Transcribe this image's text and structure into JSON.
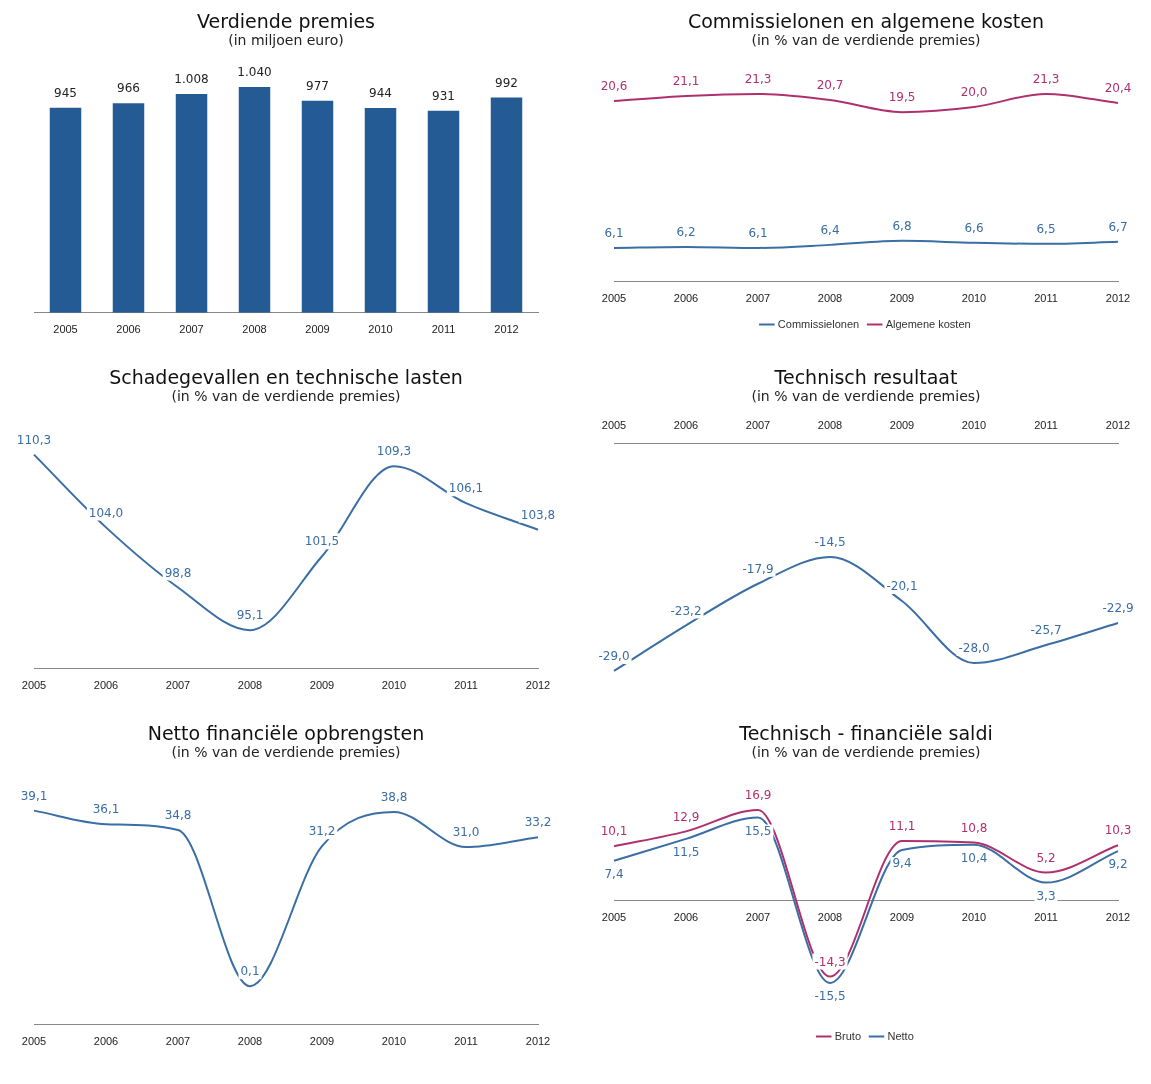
{
  "chart_data": [
    {
      "type": "bar",
      "title": "Verdiende premies",
      "subtitle": "(in miljoen euro)",
      "categories": [
        "2005",
        "2006",
        "2007",
        "2008",
        "2009",
        "2010",
        "2011",
        "2012"
      ],
      "series": [
        {
          "color": "#245b94",
          "values": [
            945,
            966,
            1008,
            1040,
            977,
            944,
            931,
            992
          ],
          "value_labels": [
            "945",
            "966",
            "1.008",
            "1.040",
            "977",
            "944",
            "931",
            "992"
          ]
        }
      ]
    },
    {
      "type": "line",
      "title": "Commissielonen en algemene kosten",
      "subtitle": "(in % van de verdiende premies)",
      "categories": [
        "2005",
        "2006",
        "2007",
        "2008",
        "2009",
        "2010",
        "2011",
        "2012"
      ],
      "legend": "bottom",
      "series": [
        {
          "name": "Commissielonen",
          "color": "#3a6ea5",
          "values": [
            6.1,
            6.2,
            6.1,
            6.4,
            6.8,
            6.6,
            6.5,
            6.7
          ],
          "value_labels": [
            "6,1",
            "6,2",
            "6,1",
            "6,4",
            "6,8",
            "6,6",
            "6,5",
            "6,7"
          ]
        },
        {
          "name": "Algemene kosten",
          "color": "#b0306e",
          "values": [
            20.6,
            21.1,
            21.3,
            20.7,
            19.5,
            20.0,
            21.3,
            20.4
          ],
          "value_labels": [
            "20,6",
            "21,1",
            "21,3",
            "20,7",
            "19,5",
            "20,0",
            "21,3",
            "20,4"
          ]
        }
      ]
    },
    {
      "type": "line",
      "title": "Schadegevallen en technische lasten",
      "subtitle": "(in % van de verdiende premies)",
      "categories": [
        "2005",
        "2006",
        "2007",
        "2008",
        "2009",
        "2010",
        "2011",
        "2012"
      ],
      "series": [
        {
          "color": "#3a6ea5",
          "values": [
            110.3,
            104.0,
            98.8,
            95.1,
            101.5,
            109.3,
            106.1,
            103.8
          ],
          "value_labels": [
            "110,3",
            "104,0",
            "98,8",
            "95,1",
            "101,5",
            "109,3",
            "106,1",
            "103,8"
          ]
        }
      ]
    },
    {
      "type": "line",
      "title": "Technisch resultaat",
      "subtitle": "(in % van de verdiende premies)",
      "categories": [
        "2005",
        "2006",
        "2007",
        "2008",
        "2009",
        "2010",
        "2011",
        "2012"
      ],
      "series": [
        {
          "color": "#3a6ea5",
          "values": [
            -29.0,
            -23.2,
            -17.9,
            -14.5,
            -20.1,
            -28.0,
            -25.7,
            -22.9
          ],
          "value_labels": [
            "-29,0",
            "-23,2",
            "-17,9",
            "-14,5",
            "-20,1",
            "-28,0",
            "-25,7",
            "-22,9"
          ]
        }
      ]
    },
    {
      "type": "line",
      "title": "Netto financiële opbrengsten",
      "subtitle": "(in % van de verdiende premies)",
      "categories": [
        "2005",
        "2006",
        "2007",
        "2008",
        "2009",
        "2010",
        "2011",
        "2012"
      ],
      "series": [
        {
          "color": "#3a6ea5",
          "values": [
            39.1,
            36.1,
            34.8,
            0.1,
            31.2,
            38.8,
            31.0,
            33.2
          ],
          "value_labels": [
            "39,1",
            "36,1",
            "34,8",
            "0,1",
            "31,2",
            "38,8",
            "31,0",
            "33,2"
          ]
        }
      ]
    },
    {
      "type": "line",
      "title": "Technisch - financiële saldi",
      "subtitle": "(in % van de verdiende premies)",
      "categories": [
        "2005",
        "2006",
        "2007",
        "2008",
        "2009",
        "2010",
        "2011",
        "2012"
      ],
      "legend": "bottom",
      "series": [
        {
          "name": "Bruto",
          "color": "#b0306e",
          "values": [
            10.1,
            12.9,
            16.9,
            -14.3,
            11.1,
            10.8,
            5.2,
            10.3
          ],
          "value_labels": [
            "10,1",
            "12,9",
            "16,9",
            "-14,3",
            "11,1",
            "10,8",
            "5,2",
            "10,3"
          ]
        },
        {
          "name": "Netto",
          "color": "#3a6ea5",
          "values": [
            7.4,
            11.5,
            15.5,
            -15.5,
            9.4,
            10.4,
            3.3,
            9.2
          ],
          "value_labels": [
            "7,4",
            "11,5",
            "15,5",
            "-15,5",
            "9,4",
            "10,4",
            "3,3",
            "9,2"
          ]
        }
      ]
    }
  ]
}
